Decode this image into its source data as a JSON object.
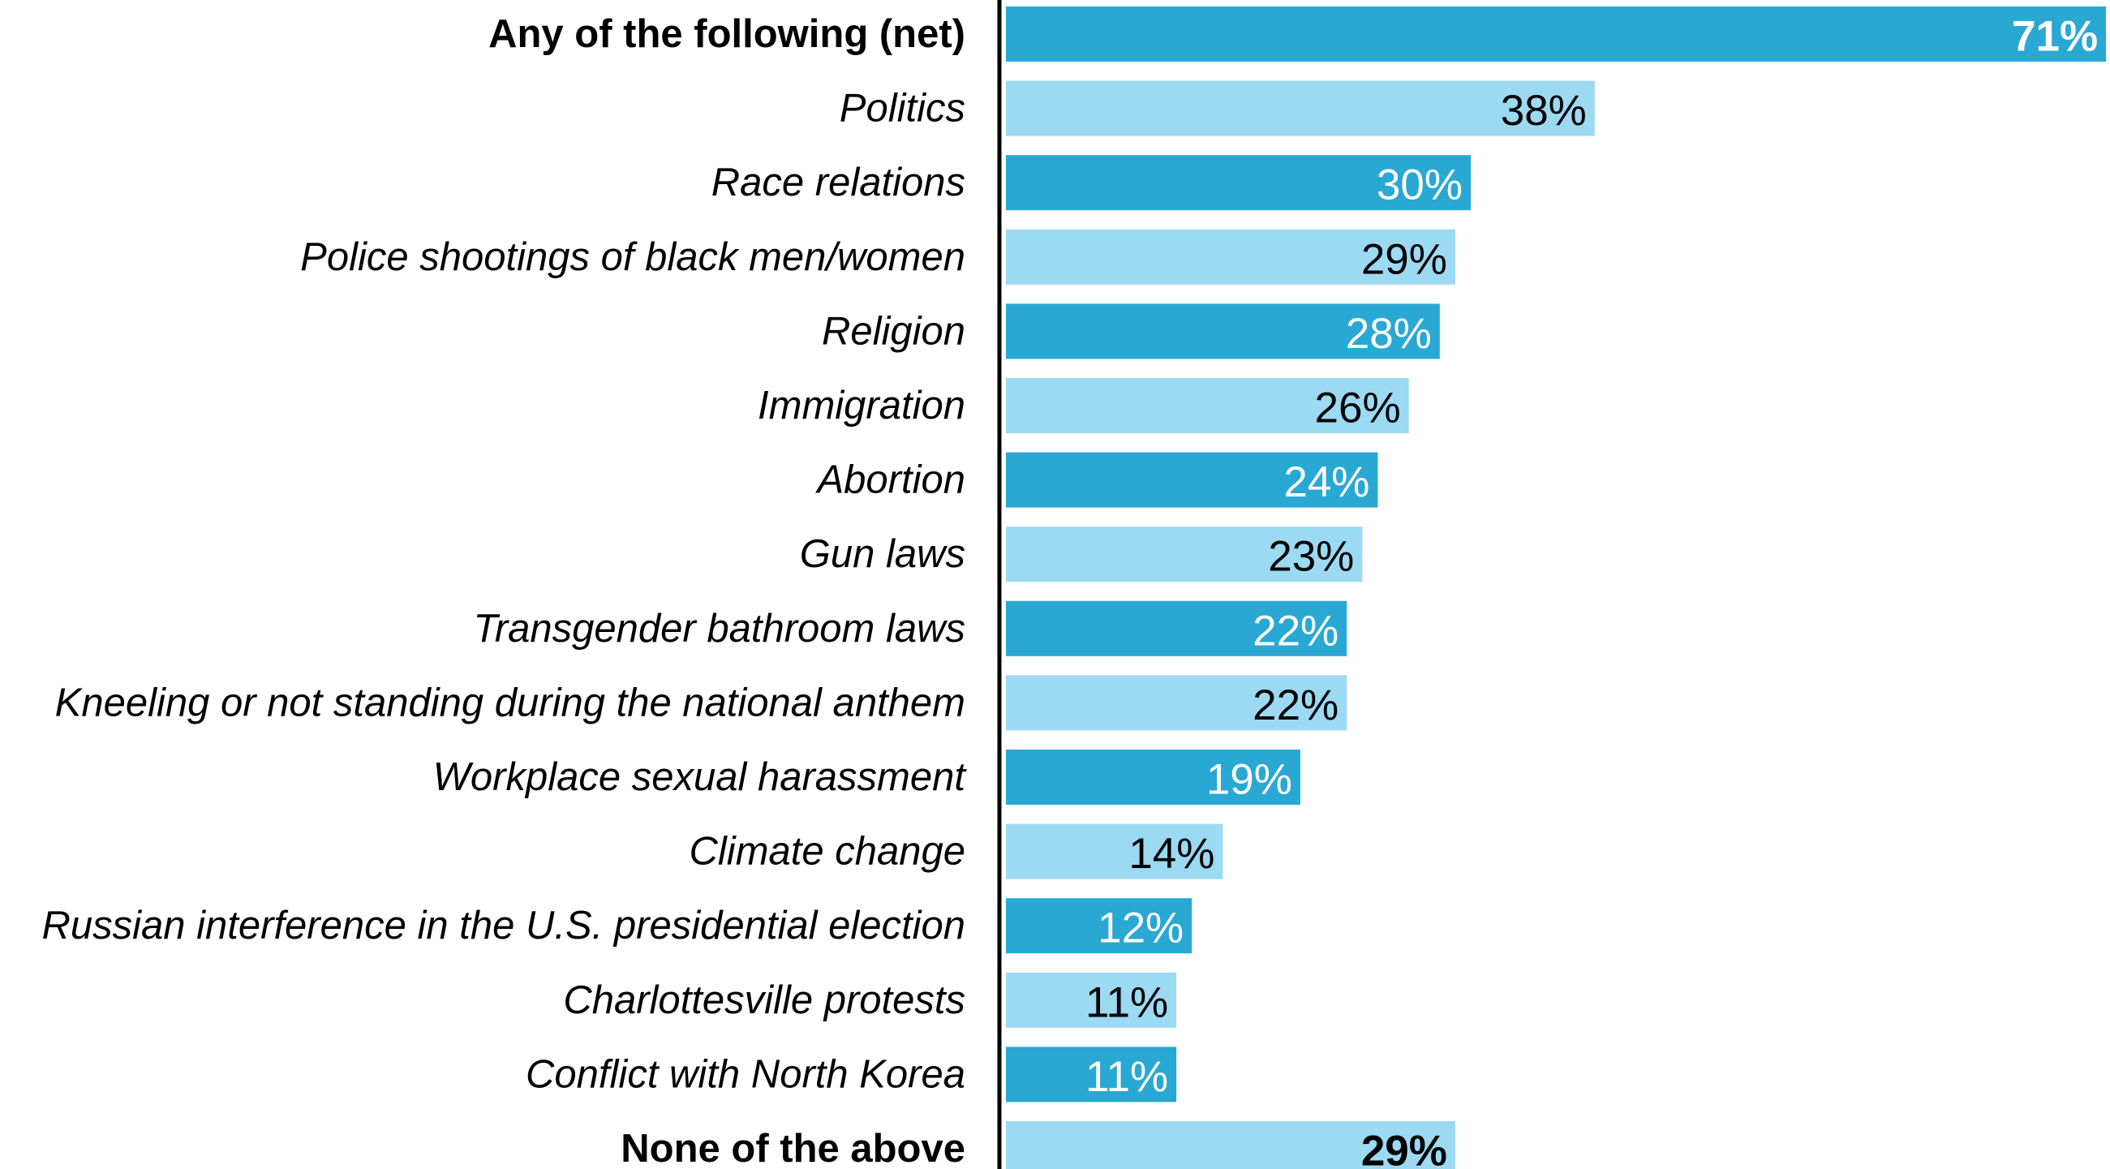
{
  "chart_data": {
    "type": "bar",
    "orientation": "horizontal",
    "categories": [
      "Any of the following (net)",
      "Politics",
      "Race relations",
      "Police shootings of black men/women",
      "Religion",
      "Immigration",
      "Abortion",
      "Gun laws",
      "Transgender bathroom laws",
      "Kneeling or not standing during the national anthem",
      "Workplace sexual harassment",
      "Climate change",
      "Russian interference in the U.S. presidential election",
      "Charlottesville protests",
      "Conflict with North Korea",
      "None of the above"
    ],
    "values": [
      71,
      38,
      30,
      29,
      28,
      26,
      24,
      23,
      22,
      22,
      19,
      14,
      12,
      11,
      11,
      29
    ],
    "value_labels": [
      "71%",
      "38%",
      "30%",
      "29%",
      "28%",
      "26%",
      "24%",
      "23%",
      "22%",
      "22%",
      "19%",
      "14%",
      "12%",
      "11%",
      "11%",
      "29%"
    ],
    "bold_categories": [
      0,
      15
    ],
    "xlim": [
      0,
      71
    ],
    "grid": false,
    "legend": "none",
    "colors": {
      "dark_bar": "#29a8d4",
      "light_bar": "#9cd9f2",
      "dark_bar_label": "#ffffff",
      "light_bar_label": "#000000",
      "axis": "#000000"
    }
  }
}
